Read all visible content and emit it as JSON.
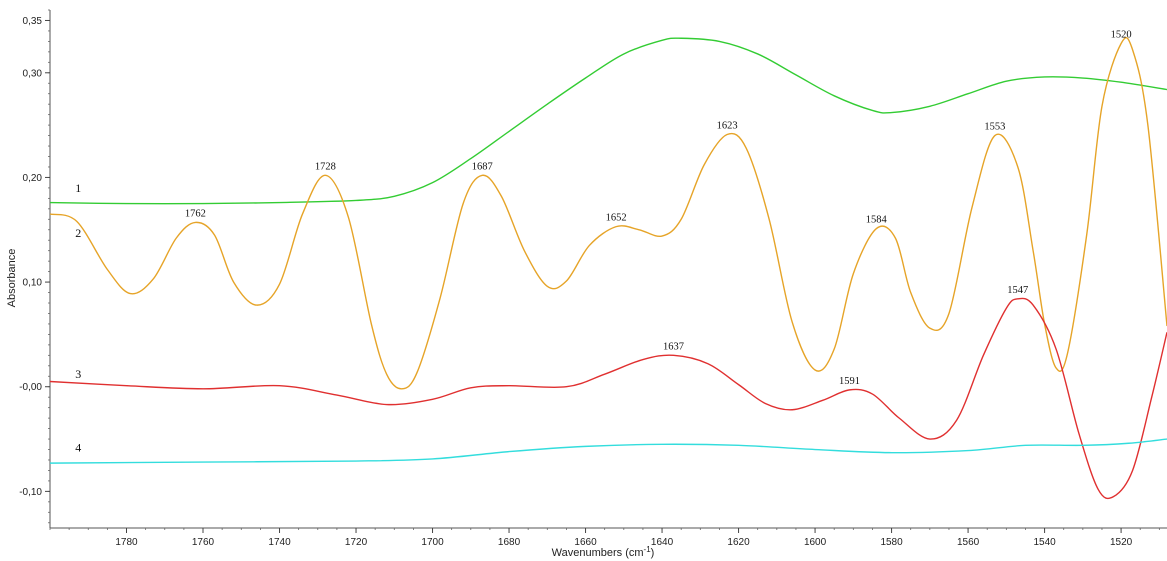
{
  "chart_data": {
    "type": "line",
    "title": "",
    "xlabel": "Wavenumbers (cm",
    "xlabel_sup": "-1",
    "xlabel_close": ")",
    "ylabel": "Absorbance",
    "xlim": [
      1800,
      1508
    ],
    "ylim": [
      -0.135,
      0.36
    ],
    "x_reversed": true,
    "grid": false,
    "x_ticks": [
      1780,
      1760,
      1740,
      1720,
      1700,
      1680,
      1660,
      1640,
      1620,
      1600,
      1580,
      1560,
      1540,
      1520
    ],
    "x_tick_labels": [
      "1780",
      "1760",
      "1740",
      "1720",
      "1700",
      "1680",
      "1660",
      "1640",
      "1620",
      "1600",
      "1580",
      "1560",
      "1540",
      "1520"
    ],
    "y_ticks": [
      0.35,
      0.3,
      0.2,
      0.1,
      0.0,
      -0.1
    ],
    "y_tick_labels": [
      "0,35",
      "0,30",
      "0,20",
      "0,10",
      "-0,00",
      "-0,10"
    ],
    "series": [
      {
        "name": "1",
        "color": "#33cc33",
        "label_at": [
          1796,
          0.19
        ],
        "points": [
          [
            1800,
            0.176
          ],
          [
            1780,
            0.175
          ],
          [
            1760,
            0.175
          ],
          [
            1740,
            0.176
          ],
          [
            1720,
            0.178
          ],
          [
            1710,
            0.182
          ],
          [
            1700,
            0.195
          ],
          [
            1690,
            0.218
          ],
          [
            1680,
            0.244
          ],
          [
            1670,
            0.27
          ],
          [
            1660,
            0.295
          ],
          [
            1650,
            0.318
          ],
          [
            1640,
            0.331
          ],
          [
            1635,
            0.333
          ],
          [
            1625,
            0.33
          ],
          [
            1615,
            0.318
          ],
          [
            1605,
            0.298
          ],
          [
            1595,
            0.278
          ],
          [
            1585,
            0.264
          ],
          [
            1580,
            0.262
          ],
          [
            1570,
            0.268
          ],
          [
            1560,
            0.28
          ],
          [
            1550,
            0.292
          ],
          [
            1540,
            0.296
          ],
          [
            1530,
            0.295
          ],
          [
            1520,
            0.291
          ],
          [
            1508,
            0.284
          ]
        ]
      },
      {
        "name": "2",
        "color": "#e6a428",
        "label_at": [
          1796,
          0.147
        ],
        "points": [
          [
            1800,
            0.165
          ],
          [
            1793,
            0.158
          ],
          [
            1785,
            0.112
          ],
          [
            1779,
            0.089
          ],
          [
            1773,
            0.103
          ],
          [
            1767,
            0.142
          ],
          [
            1762,
            0.157
          ],
          [
            1757,
            0.145
          ],
          [
            1752,
            0.1
          ],
          [
            1746,
            0.078
          ],
          [
            1740,
            0.098
          ],
          [
            1734,
            0.165
          ],
          [
            1728,
            0.202
          ],
          [
            1722,
            0.162
          ],
          [
            1716,
            0.06
          ],
          [
            1712,
            0.012
          ],
          [
            1708,
            -0.002
          ],
          [
            1704,
            0.014
          ],
          [
            1698,
            0.085
          ],
          [
            1692,
            0.175
          ],
          [
            1687,
            0.202
          ],
          [
            1682,
            0.182
          ],
          [
            1676,
            0.13
          ],
          [
            1670,
            0.096
          ],
          [
            1665,
            0.101
          ],
          [
            1659,
            0.135
          ],
          [
            1652,
            0.153
          ],
          [
            1646,
            0.15
          ],
          [
            1640,
            0.144
          ],
          [
            1635,
            0.16
          ],
          [
            1629,
            0.212
          ],
          [
            1623,
            0.241
          ],
          [
            1618,
            0.228
          ],
          [
            1612,
            0.16
          ],
          [
            1606,
            0.062
          ],
          [
            1600,
            0.016
          ],
          [
            1595,
            0.036
          ],
          [
            1590,
            0.108
          ],
          [
            1584,
            0.151
          ],
          [
            1579,
            0.142
          ],
          [
            1575,
            0.09
          ],
          [
            1570,
            0.056
          ],
          [
            1565,
            0.07
          ],
          [
            1559,
            0.171
          ],
          [
            1553,
            0.24
          ],
          [
            1547,
            0.21
          ],
          [
            1543,
            0.13
          ],
          [
            1540,
            0.06
          ],
          [
            1537,
            0.018
          ],
          [
            1534,
            0.032
          ],
          [
            1529,
            0.145
          ],
          [
            1525,
            0.268
          ],
          [
            1520,
            0.328
          ],
          [
            1517,
            0.322
          ],
          [
            1513,
            0.25
          ],
          [
            1508,
            0.058
          ]
        ]
      },
      {
        "name": "3",
        "color": "#e03030",
        "label_at": [
          1796,
          0.012
        ],
        "points": [
          [
            1800,
            0.005
          ],
          [
            1780,
            0.001
          ],
          [
            1760,
            -0.002
          ],
          [
            1740,
            0.001
          ],
          [
            1725,
            -0.008
          ],
          [
            1712,
            -0.017
          ],
          [
            1700,
            -0.012
          ],
          [
            1690,
            -0.001
          ],
          [
            1680,
            0.001
          ],
          [
            1665,
            0.0
          ],
          [
            1655,
            0.012
          ],
          [
            1645,
            0.026
          ],
          [
            1637,
            0.03
          ],
          [
            1628,
            0.022
          ],
          [
            1620,
            0.002
          ],
          [
            1613,
            -0.016
          ],
          [
            1606,
            -0.022
          ],
          [
            1598,
            -0.013
          ],
          [
            1591,
            -0.003
          ],
          [
            1585,
            -0.007
          ],
          [
            1578,
            -0.03
          ],
          [
            1570,
            -0.05
          ],
          [
            1563,
            -0.032
          ],
          [
            1556,
            0.03
          ],
          [
            1550,
            0.075
          ],
          [
            1547,
            0.084
          ],
          [
            1543,
            0.078
          ],
          [
            1537,
            0.036
          ],
          [
            1531,
            -0.045
          ],
          [
            1526,
            -0.098
          ],
          [
            1522,
            -0.105
          ],
          [
            1517,
            -0.08
          ],
          [
            1512,
            -0.01
          ],
          [
            1508,
            0.052
          ]
        ]
      },
      {
        "name": "4",
        "color": "#33dddd",
        "label_at": [
          1796,
          -0.058
        ],
        "points": [
          [
            1800,
            -0.073
          ],
          [
            1760,
            -0.072
          ],
          [
            1720,
            -0.071
          ],
          [
            1700,
            -0.069
          ],
          [
            1680,
            -0.062
          ],
          [
            1660,
            -0.057
          ],
          [
            1640,
            -0.055
          ],
          [
            1620,
            -0.056
          ],
          [
            1600,
            -0.06
          ],
          [
            1580,
            -0.063
          ],
          [
            1560,
            -0.061
          ],
          [
            1545,
            -0.056
          ],
          [
            1530,
            -0.056
          ],
          [
            1518,
            -0.054
          ],
          [
            1508,
            -0.05
          ]
        ]
      }
    ],
    "annotations": [
      {
        "text": "1762",
        "x": 1762,
        "y": 0.157
      },
      {
        "text": "1728",
        "x": 1728,
        "y": 0.202
      },
      {
        "text": "1687",
        "x": 1687,
        "y": 0.202
      },
      {
        "text": "1652",
        "x": 1652,
        "y": 0.153
      },
      {
        "text": "1623",
        "x": 1623,
        "y": 0.241
      },
      {
        "text": "1584",
        "x": 1584,
        "y": 0.151
      },
      {
        "text": "1553",
        "x": 1553,
        "y": 0.24
      },
      {
        "text": "1520",
        "x": 1520,
        "y": 0.328
      },
      {
        "text": "1637",
        "x": 1637,
        "y": 0.03
      },
      {
        "text": "1591",
        "x": 1591,
        "y": -0.003
      },
      {
        "text": "1547",
        "x": 1547,
        "y": 0.084
      }
    ]
  }
}
